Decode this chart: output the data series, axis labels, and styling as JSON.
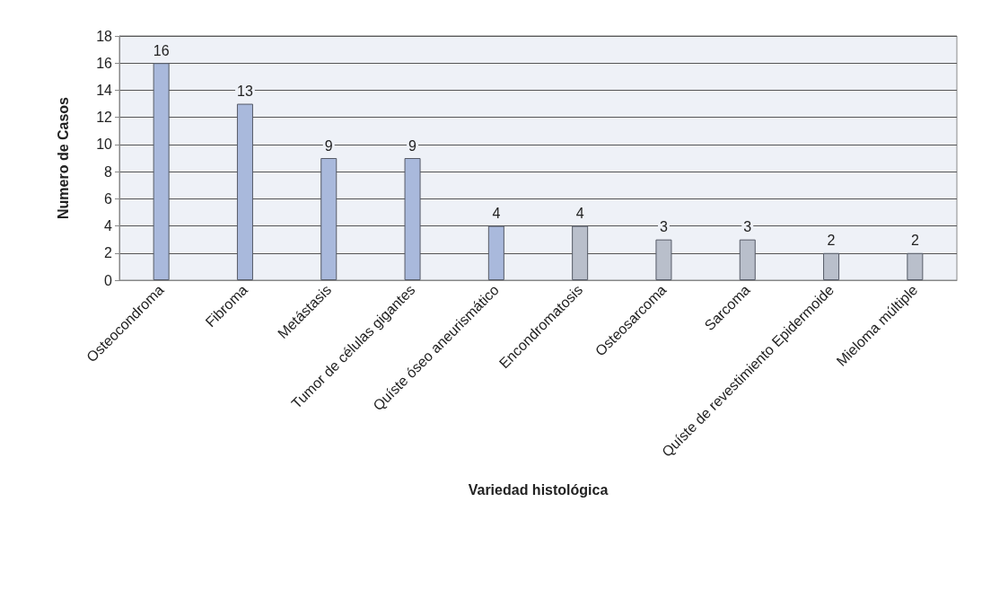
{
  "chart_data": {
    "type": "bar",
    "xlabel": "Variedad histológica",
    "ylabel": "Numero de Casos",
    "categories": [
      "Osteocondroma",
      "Fibroma",
      "Metástasis",
      "Tumor de células gigantes",
      "Quíste óseo aneurismático",
      "Encondromatosis",
      "Osteosarcoma",
      "Sarcoma",
      "Quíste de revestimiento Epidermoide",
      "Mieloma múltiple"
    ],
    "values": [
      16,
      13,
      9,
      9,
      4,
      4,
      3,
      3,
      2,
      2
    ],
    "colors": [
      "#a9b9dc",
      "#a9b9dc",
      "#a9b9dc",
      "#a9b9dc",
      "#a9b9dc",
      "#b9bfcb",
      "#b9bfcb",
      "#b9bfcb",
      "#b9bfcb",
      "#b9bfcb"
    ],
    "ylim": [
      0,
      18
    ],
    "yticks": [
      0,
      2,
      4,
      6,
      8,
      10,
      12,
      14,
      16,
      18
    ],
    "grid": "y",
    "data_labels": true
  }
}
